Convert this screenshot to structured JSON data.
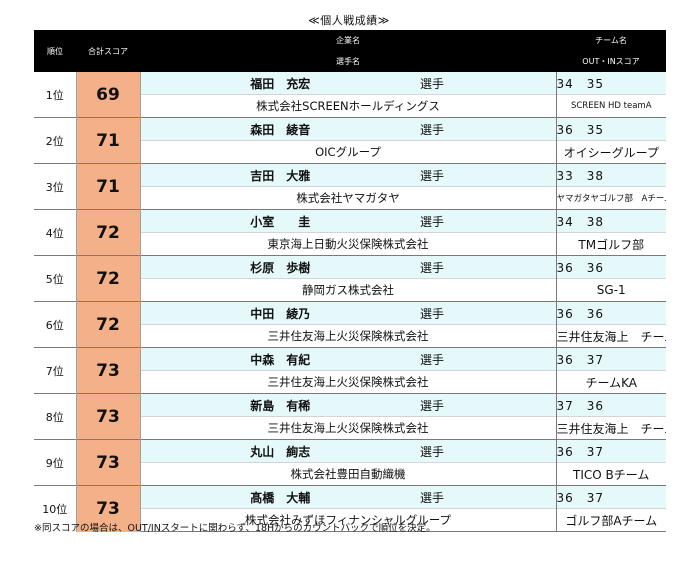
{
  "title": "≪個人戦成績≫",
  "headers": {
    "rank": "順位",
    "score": "合計スコア",
    "company": "企業名",
    "player": "選手名",
    "team": "チーム名",
    "outin": "OUT・INスコア"
  },
  "rows": [
    {
      "rank": "1位",
      "score": "69",
      "player": "福田　充宏",
      "role": "選手",
      "outin": "34　35",
      "company": "株式会社SCREENホールディングス",
      "team": "SCREEN HD teamA"
    },
    {
      "rank": "2位",
      "score": "71",
      "player": "森田　綾音",
      "role": "選手",
      "outin": "36　35",
      "company": "OICグループ",
      "team": "オイシーグループ"
    },
    {
      "rank": "3位",
      "score": "71",
      "player": "吉田　大雅",
      "role": "選手",
      "outin": "33　38",
      "company": "株式会社ヤマガタヤ",
      "team": "ヤマガタヤゴルフ部　Aチーム"
    },
    {
      "rank": "4位",
      "score": "72",
      "player": "小室　　圭",
      "role": "選手",
      "outin": "34　38",
      "company": "東京海上日動火災保険株式会社",
      "team": "TMゴルフ部"
    },
    {
      "rank": "5位",
      "score": "72",
      "player": "杉原　歩樹",
      "role": "選手",
      "outin": "36　36",
      "company": "静岡ガス株式会社",
      "team": "SG-1"
    },
    {
      "rank": "6位",
      "score": "72",
      "player": "中田　綾乃",
      "role": "選手",
      "outin": "36　36",
      "company": "三井住友海上火災保険株式会社",
      "team": "三井住友海上　チームB"
    },
    {
      "rank": "7位",
      "score": "73",
      "player": "中森　有紀",
      "role": "選手",
      "outin": "36　37",
      "company": "三井住友海上火災保険株式会社",
      "team": "チームKA"
    },
    {
      "rank": "8位",
      "score": "73",
      "player": "新島　有稀",
      "role": "選手",
      "outin": "37　36",
      "company": "三井住友海上火災保険株式会社",
      "team": "三井住友海上　チームA"
    },
    {
      "rank": "9位",
      "score": "73",
      "player": "丸山　絢志",
      "role": "選手",
      "outin": "36　37",
      "company": "株式会社豊田自動織機",
      "team": "TICO Bチーム"
    },
    {
      "rank": "10位",
      "score": "73",
      "player": "髙橋　大輔",
      "role": "選手",
      "outin": "36　37",
      "company": "株式会社みずほフィナンシャルグループ",
      "team": "ゴルフ部Aチーム"
    }
  ],
  "footnote": "※同スコアの場合は、OUT/INスタートに関わらず、18Hからのカウントバックで順位を決定。"
}
